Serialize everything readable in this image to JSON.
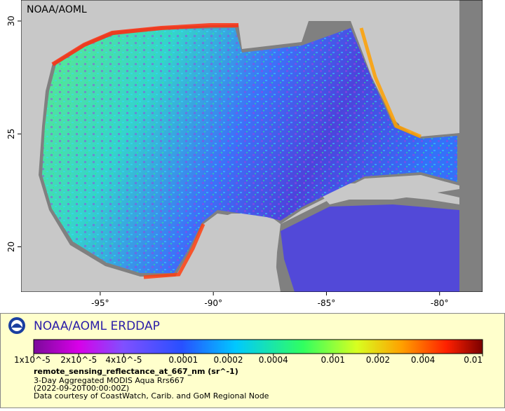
{
  "map": {
    "corner_label": "NOAA/AOML",
    "lonlim": [
      -98.5,
      -78.1
    ],
    "latlim": [
      18,
      30.93
    ],
    "lonticks": [
      {
        "value": -95,
        "label": "-95°"
      },
      {
        "value": -90,
        "label": "-90°"
      },
      {
        "value": -85,
        "label": "-85°"
      },
      {
        "value": -80,
        "label": "-80°"
      }
    ],
    "latticks": [
      20,
      25,
      30
    ]
  },
  "legend": {
    "title": "NOAA/AOML ERDDAP",
    "colorbar": {
      "lim": [
        1e-05,
        0.01
      ],
      "log": true,
      "ticks": [
        {
          "value": 1e-05,
          "label": "1x10^-5"
        },
        {
          "value": 2e-05,
          "label": "2x10^-5"
        },
        {
          "value": 4e-05,
          "label": "4x10^-5"
        },
        0.0001,
        0.0002,
        0.0004,
        0.001,
        0.002,
        0.004,
        0.01
      ]
    },
    "caption": [
      "remote_sensing_reflectance_at_667_nm (sr^-1)",
      "3-Day Aggregated MODIS Aqua Rrs667",
      "(2022-09-20T00:00:00Z)",
      "Data courtesy of CoastWatch, Carib. and GoM Regional Node"
    ]
  }
}
